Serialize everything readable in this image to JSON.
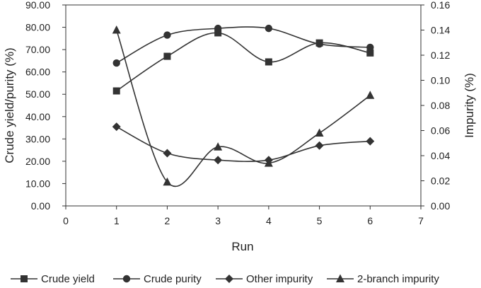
{
  "chart_data": {
    "type": "line",
    "title": "",
    "xlabel": "Run",
    "ylabel": "Crude yield/purity (%)",
    "y2label": "Impurity (%)",
    "xlim": [
      0,
      7
    ],
    "xticks": [
      "0",
      "1",
      "2",
      "3",
      "4",
      "5",
      "6",
      "7"
    ],
    "ylim": [
      0,
      90
    ],
    "yticks": [
      "0.00",
      "10.00",
      "20.00",
      "30.00",
      "40.00",
      "50.00",
      "60.00",
      "70.00",
      "80.00",
      "90.00"
    ],
    "y2lim": [
      0,
      0.16
    ],
    "y2ticks": [
      "0.00",
      "0.02",
      "0.04",
      "0.06",
      "0.08",
      "0.10",
      "0.12",
      "0.14",
      "0.16"
    ],
    "grid": false,
    "legend_position": "bottom",
    "x": [
      1,
      2,
      3,
      4,
      5,
      6
    ],
    "series": [
      {
        "name": "Crude yield",
        "axis": "left",
        "marker": "square",
        "values": [
          51.5,
          67.0,
          77.5,
          64.5,
          73.0,
          68.5
        ]
      },
      {
        "name": "Crude purity",
        "axis": "left",
        "marker": "circle",
        "values": [
          64.0,
          76.5,
          79.5,
          79.5,
          72.5,
          71.0
        ]
      },
      {
        "name": "Other impurity",
        "axis": "right",
        "marker": "diamond",
        "values": [
          0.063,
          0.042,
          0.0365,
          0.0365,
          0.048,
          0.0515
        ]
      },
      {
        "name": "2-branch impurity",
        "axis": "right",
        "marker": "triangle",
        "values": [
          0.14,
          0.019,
          0.047,
          0.034,
          0.058,
          0.088
        ]
      }
    ],
    "colors": {
      "line": "#333333",
      "axis": "#333333",
      "text": "#222222"
    }
  }
}
